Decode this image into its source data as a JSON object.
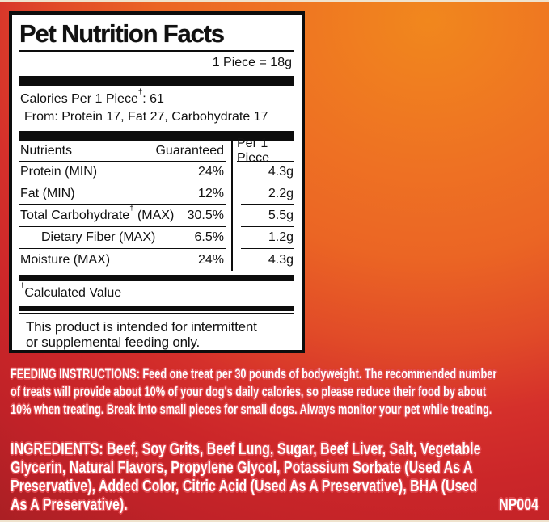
{
  "page": {
    "bg_orange": "#ee7123",
    "bg_red": "#c8232a",
    "edge_line_color": "#efe3ce"
  },
  "panel": {
    "title": "Pet Nutrition Facts",
    "serving_size": "1 Piece = 18g",
    "calories": {
      "line1": "Calories Per 1 Piece†: 61",
      "line2": "From: Protein 17, Fat 27, Carbohydrate 17"
    },
    "table": {
      "col_nutrients": "Nutrients",
      "col_guaranteed": "Guaranteed",
      "col_per_piece": "Per 1 Piece",
      "rows": [
        {
          "name": "Protein (MIN)",
          "guaranteed": "24%",
          "per_piece": "4.3g"
        },
        {
          "name": "Fat (MIN)",
          "guaranteed": "12%",
          "per_piece": "2.2g"
        },
        {
          "name": "Total Carbohydrate† (MAX)",
          "guaranteed": "30.5%",
          "per_piece": "5.5g"
        },
        {
          "name": "Dietary Fiber (MAX)",
          "guaranteed": "6.5%",
          "per_piece": "1.2g"
        },
        {
          "name": "Moisture (MAX)",
          "guaranteed": "24%",
          "per_piece": "4.3g"
        }
      ]
    },
    "footnote": "†Calculated Value",
    "statement_line1": "This product is intended for intermittent",
    "statement_line2": "or supplemental feeding only."
  },
  "feeding_instructions": {
    "lines": [
      "FEEDING INSTRUCTIONS: Feed one treat per 30 pounds of bodyweight. The recommended number",
      "of treats will provide about 10% of your dog's daily calories, so please reduce their food by about",
      "10% when treating. Break into small pieces for small dogs. Always monitor your pet while treating."
    ]
  },
  "ingredients": {
    "lines": [
      "INGREDIENTS: Beef, Soy Grits, Beef Lung, Sugar, Beef Liver, Salt, Vegetable",
      "Glycerin, Natural Flavors, Propylene Glycol, Potassium Sorbate (Used As A",
      "Preservative), Added Color, Citric Acid (Used As A Preservative), BHA (Used",
      "As A Preservative)."
    ],
    "product_code": "NP004"
  }
}
